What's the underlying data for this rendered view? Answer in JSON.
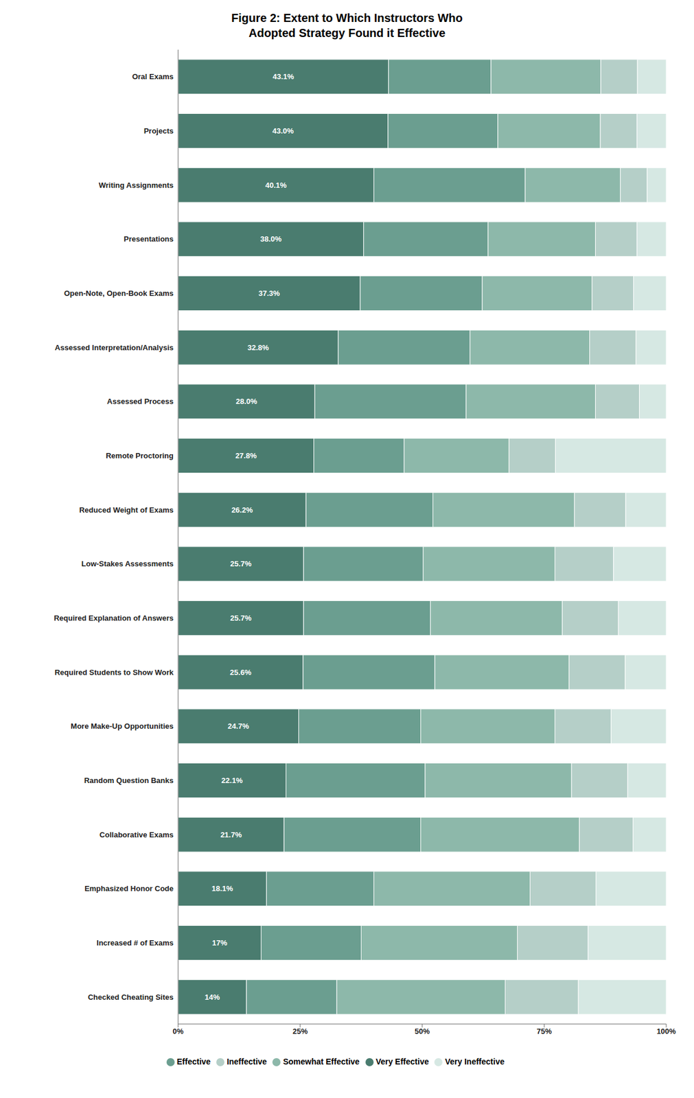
{
  "chart_data": {
    "type": "bar",
    "title": "Figure 2: Extent to Which Instructors Who\nAdopted Strategy Found it Effective",
    "orientation": "horizontal",
    "stacked": true,
    "grid": false,
    "legend": "bottom",
    "categories": [
      "Oral Exams",
      "Projects",
      "Writing Assignments",
      "Presentations",
      "Open-Note, Open-Book Exams",
      "Assessed Interpretation/Analysis",
      "Assessed Process",
      "Remote Proctoring",
      "Reduced Weight of Exams",
      "Low-Stakes Assessments",
      "Required Explanation of Answers",
      "Required Students to Show Work",
      "More Make-Up Opportunities",
      "Random Question Banks",
      "Collaborative Exams",
      "Emphasized Honor Code",
      "Increased # of Exams",
      "Checked Cheating Sites"
    ],
    "xlim": [
      0,
      100
    ],
    "xticks": [
      {
        "value": 0,
        "label": "0%"
      },
      {
        "value": 25,
        "label": "25%"
      },
      {
        "value": 50,
        "label": "50%"
      },
      {
        "value": 75,
        "label": "75%"
      },
      {
        "value": 100,
        "label": "100%"
      }
    ],
    "series": [
      {
        "name": "Very Effective",
        "color": "#4a7c6f",
        "data_labels": true,
        "values": [
          43.1,
          43.0,
          40.1,
          38.0,
          37.3,
          32.8,
          28.0,
          27.8,
          26.2,
          25.7,
          25.7,
          25.6,
          24.7,
          22.1,
          21.7,
          18.1,
          17.0,
          14.0
        ],
        "value_labels": [
          "43.1%",
          "43.0%",
          "40.1%",
          "38.0%",
          "37.3%",
          "32.8%",
          "28.0%",
          "27.8%",
          "26.2%",
          "25.7%",
          "25.7%",
          "25.6%",
          "24.7%",
          "22.1%",
          "21.7%",
          "18.1%",
          "17%",
          "14%"
        ]
      },
      {
        "name": "Effective",
        "color": "#6b9e90",
        "values": [
          21.0,
          22.5,
          31.0,
          25.5,
          25.0,
          27.0,
          31.0,
          18.5,
          26.0,
          24.5,
          26.0,
          27.0,
          25.0,
          28.5,
          28.0,
          22.0,
          20.5,
          18.5
        ]
      },
      {
        "name": "Somewhat Effective",
        "color": "#8db8aa",
        "values": [
          22.5,
          21.0,
          19.5,
          22.0,
          22.5,
          24.5,
          26.5,
          21.5,
          29.0,
          27.0,
          27.0,
          27.5,
          27.5,
          30.0,
          32.5,
          32.0,
          32.0,
          34.5
        ]
      },
      {
        "name": "Ineffective",
        "color": "#b5cfc8",
        "values": [
          7.5,
          7.5,
          5.5,
          8.5,
          8.5,
          9.5,
          9.0,
          9.5,
          10.5,
          12.0,
          11.5,
          11.5,
          11.5,
          11.5,
          11.0,
          13.5,
          14.5,
          15.0
        ]
      },
      {
        "name": "Very Ineffective",
        "color": "#d6e8e3",
        "values": [
          5.9,
          6.0,
          3.9,
          6.0,
          6.7,
          6.2,
          5.5,
          22.7,
          8.3,
          10.8,
          9.8,
          8.4,
          11.3,
          7.9,
          6.8,
          14.4,
          16.0,
          18.0
        ]
      }
    ]
  }
}
